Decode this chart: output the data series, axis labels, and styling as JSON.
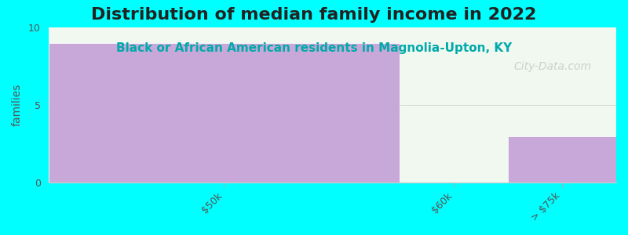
{
  "title": "Distribution of median family income in 2022",
  "subtitle": "Black or African American residents in Magnolia-Upton, KY",
  "categories": [
    "$50k",
    "$60k",
    "> $75k"
  ],
  "values": [
    9,
    0,
    3
  ],
  "bar_color": "#c8a8d8",
  "background_color": "#00ffff",
  "plot_bg_color": "#f0f8f0",
  "ylabel": "families",
  "ylim": [
    0,
    10
  ],
  "yticks": [
    0,
    5,
    10
  ],
  "title_fontsize": 16,
  "subtitle_fontsize": 11,
  "watermark": "City-Data.com"
}
